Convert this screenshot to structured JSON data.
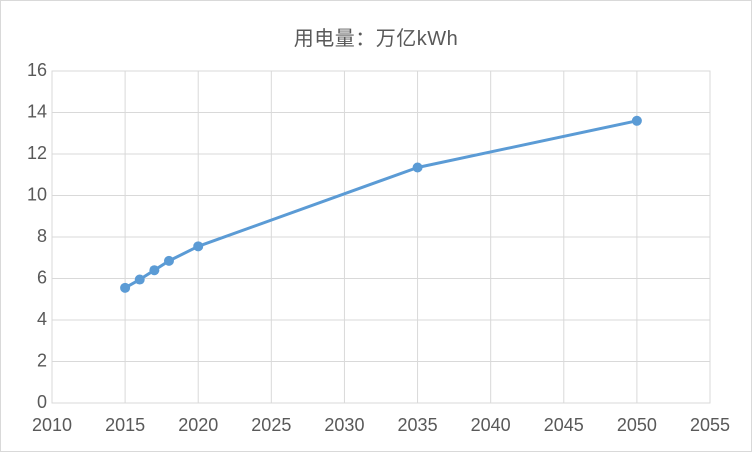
{
  "window": {
    "background_color": "#ffffff",
    "border_color": "#d9d9d9"
  },
  "chart_data": {
    "type": "line",
    "title": "用电量：万亿kWh",
    "x": [
      2015,
      2016,
      2017,
      2018,
      2020,
      2035,
      2050
    ],
    "values": [
      5.55,
      5.95,
      6.4,
      6.85,
      7.55,
      11.35,
      13.6
    ],
    "x_ticks": [
      2010,
      2015,
      2020,
      2025,
      2030,
      2035,
      2040,
      2045,
      2050,
      2055
    ],
    "y_ticks": [
      0,
      2,
      4,
      6,
      8,
      10,
      12,
      14,
      16
    ],
    "xlim": [
      2010,
      2055
    ],
    "ylim": [
      0,
      16
    ],
    "xlabel": "",
    "ylabel": "",
    "grid": true,
    "legend_position": "none",
    "marker": "circle",
    "line_color": "#5b9bd5",
    "marker_color": "#5b9bd5",
    "gridline_color": "#d9d9d9",
    "plot_border_color": "#d9d9d9",
    "axis_label_color": "#595959",
    "title_color": "#595959"
  }
}
